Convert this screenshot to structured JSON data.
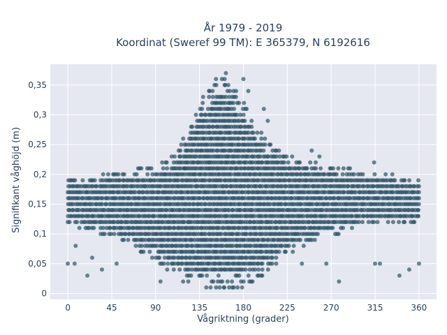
{
  "chart_data": {
    "type": "scatter",
    "title_line1": "År 1979 - 2019",
    "title_line2": "Koordinat (Sweref 99 TM): E 365379, N 6192616",
    "xlabel": "Vågriktning (grader)",
    "ylabel": "Signifikant våghöjd (m)",
    "xlim": [
      -18,
      378
    ],
    "ylim": [
      -0.01,
      0.385
    ],
    "x_ticks": [
      0,
      45,
      90,
      135,
      180,
      225,
      270,
      315,
      360
    ],
    "x_tick_labels": [
      "0",
      "45",
      "90",
      "135",
      "180",
      "225",
      "270",
      "315",
      "360"
    ],
    "y_ticks": [
      0,
      0.05,
      0.1,
      0.15,
      0.2,
      0.25,
      0.3,
      0.35
    ],
    "y_tick_labels": [
      "0",
      "0,05",
      "0,1",
      "0,15",
      "0,2",
      "0,25",
      "0,3",
      "0,35"
    ],
    "marker_color": "#2e5266",
    "plot_bg": "#e5e8f0",
    "grid": true,
    "height_profile": {
      "direction": [
        0,
        45,
        90,
        110,
        125,
        135,
        145,
        155,
        165,
        175,
        185,
        200,
        225,
        270,
        315,
        360
      ],
      "max_height": [
        0.19,
        0.2,
        0.21,
        0.23,
        0.28,
        0.32,
        0.34,
        0.37,
        0.35,
        0.33,
        0.31,
        0.26,
        0.23,
        0.21,
        0.2,
        0.19
      ],
      "min_height": [
        0.12,
        0.1,
        0.06,
        0.03,
        0.02,
        0.01,
        0.01,
        0.01,
        0.01,
        0.01,
        0.02,
        0.03,
        0.07,
        0.1,
        0.12,
        0.12
      ]
    },
    "outliers": [
      {
        "x": 0,
        "y": 0.05
      },
      {
        "x": 7,
        "y": 0.05
      },
      {
        "x": 8,
        "y": 0.08
      },
      {
        "x": 20,
        "y": 0.03
      },
      {
        "x": 25,
        "y": 0.06
      },
      {
        "x": 35,
        "y": 0.04
      },
      {
        "x": 50,
        "y": 0.05
      },
      {
        "x": 142,
        "y": 0.01
      },
      {
        "x": 160,
        "y": 0.01
      },
      {
        "x": 162,
        "y": 0.37
      },
      {
        "x": 158,
        "y": 0.36
      },
      {
        "x": 170,
        "y": 0.34
      },
      {
        "x": 180,
        "y": 0.36
      },
      {
        "x": 185,
        "y": 0.34
      },
      {
        "x": 201,
        "y": 0.31
      },
      {
        "x": 205,
        "y": 0.29
      },
      {
        "x": 250,
        "y": 0.24
      },
      {
        "x": 258,
        "y": 0.23
      },
      {
        "x": 278,
        "y": 0.02
      },
      {
        "x": 314,
        "y": 0.22
      },
      {
        "x": 315,
        "y": 0.05
      },
      {
        "x": 320,
        "y": 0.05
      },
      {
        "x": 340,
        "y": 0.03
      },
      {
        "x": 350,
        "y": 0.04
      },
      {
        "x": 360,
        "y": 0.05
      },
      {
        "x": 120,
        "y": 0.21
      },
      {
        "x": 230,
        "y": 0.23
      },
      {
        "x": 240,
        "y": 0.05
      },
      {
        "x": 265,
        "y": 0.05
      },
      {
        "x": 95,
        "y": 0.02
      }
    ]
  }
}
